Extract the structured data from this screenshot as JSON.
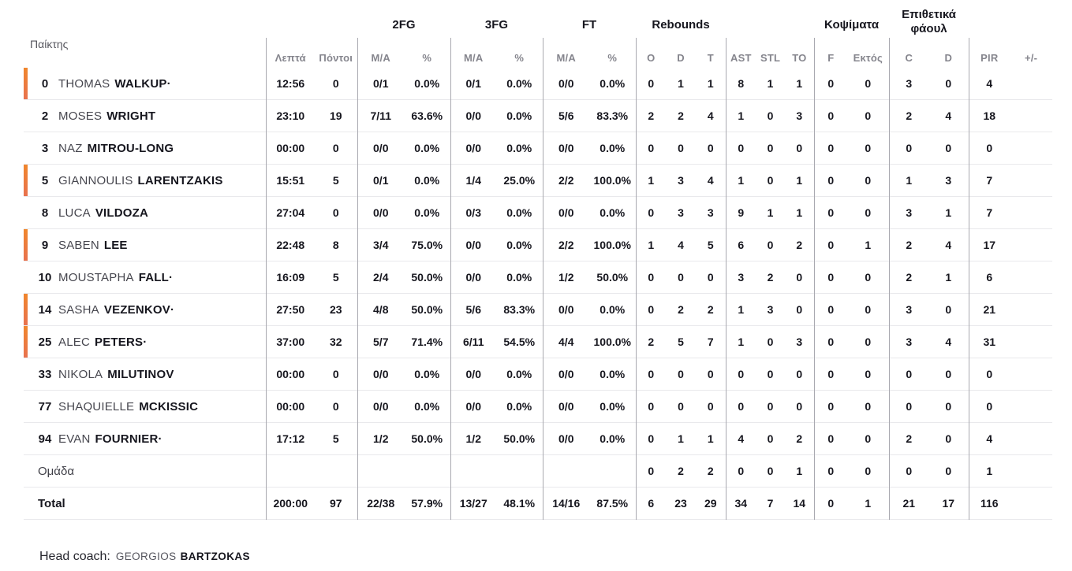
{
  "colors": {
    "starter_bar_top": "#f0862c",
    "starter_bar_bottom": "#e8724f",
    "row_divider": "#e9e9ec",
    "column_divider": "#a9a9b0",
    "text_primary": "#16161e",
    "text_muted": "#85858d"
  },
  "header": {
    "player": "Παίκτης",
    "groups": {
      "fg2": "2FG",
      "fg3": "3FG",
      "ft": "FT",
      "rebounds": "Rebounds",
      "blocks": "Κοψίματα",
      "offensive_fouls": "Επιθετικά φάουλ"
    }
  },
  "sub_headers": [
    "Λεπτά",
    "Πόντοι",
    "M/A",
    "%",
    "M/A",
    "%",
    "M/A",
    "%",
    "O",
    "D",
    "T",
    "AST",
    "STL",
    "TO",
    "F",
    "Εκτός",
    "C",
    "D",
    "PIR",
    "+/-"
  ],
  "rows": [
    {
      "number": "0",
      "first": "THOMAS",
      "last": "WALKUP·",
      "starter": true,
      "cells": [
        "12:56",
        "0",
        "0/1",
        "0.0%",
        "0/1",
        "0.0%",
        "0/0",
        "0.0%",
        "0",
        "1",
        "1",
        "8",
        "1",
        "1",
        "0",
        "0",
        "3",
        "0",
        "4",
        ""
      ]
    },
    {
      "number": "2",
      "first": "MOSES",
      "last": "WRIGHT",
      "starter": false,
      "cells": [
        "23:10",
        "19",
        "7/11",
        "63.6%",
        "0/0",
        "0.0%",
        "5/6",
        "83.3%",
        "2",
        "2",
        "4",
        "1",
        "0",
        "3",
        "0",
        "0",
        "2",
        "4",
        "18",
        ""
      ]
    },
    {
      "number": "3",
      "first": "NAZ",
      "last": "MITROU-LONG",
      "starter": false,
      "cells": [
        "00:00",
        "0",
        "0/0",
        "0.0%",
        "0/0",
        "0.0%",
        "0/0",
        "0.0%",
        "0",
        "0",
        "0",
        "0",
        "0",
        "0",
        "0",
        "0",
        "0",
        "0",
        "0",
        ""
      ]
    },
    {
      "number": "5",
      "first": "GIANNOULIS",
      "last": "LARENTZAKIS",
      "starter": true,
      "cells": [
        "15:51",
        "5",
        "0/1",
        "0.0%",
        "1/4",
        "25.0%",
        "2/2",
        "100.0%",
        "1",
        "3",
        "4",
        "1",
        "0",
        "1",
        "0",
        "0",
        "1",
        "3",
        "7",
        ""
      ]
    },
    {
      "number": "8",
      "first": "LUCA",
      "last": "VILDOZA",
      "starter": false,
      "cells": [
        "27:04",
        "0",
        "0/0",
        "0.0%",
        "0/3",
        "0.0%",
        "0/0",
        "0.0%",
        "0",
        "3",
        "3",
        "9",
        "1",
        "1",
        "0",
        "0",
        "3",
        "1",
        "7",
        ""
      ]
    },
    {
      "number": "9",
      "first": "SABEN",
      "last": "LEE",
      "starter": true,
      "cells": [
        "22:48",
        "8",
        "3/4",
        "75.0%",
        "0/0",
        "0.0%",
        "2/2",
        "100.0%",
        "1",
        "4",
        "5",
        "6",
        "0",
        "2",
        "0",
        "1",
        "2",
        "4",
        "17",
        ""
      ]
    },
    {
      "number": "10",
      "first": "MOUSTAPHA",
      "last": "FALL·",
      "starter": false,
      "cells": [
        "16:09",
        "5",
        "2/4",
        "50.0%",
        "0/0",
        "0.0%",
        "1/2",
        "50.0%",
        "0",
        "0",
        "0",
        "3",
        "2",
        "0",
        "0",
        "0",
        "2",
        "1",
        "6",
        ""
      ]
    },
    {
      "number": "14",
      "first": "SASHA",
      "last": "VEZENKOV·",
      "starter": true,
      "cells": [
        "27:50",
        "23",
        "4/8",
        "50.0%",
        "5/6",
        "83.3%",
        "0/0",
        "0.0%",
        "0",
        "2",
        "2",
        "1",
        "3",
        "0",
        "0",
        "0",
        "3",
        "0",
        "21",
        ""
      ]
    },
    {
      "number": "25",
      "first": "ALEC",
      "last": "PETERS·",
      "starter": true,
      "cells": [
        "37:00",
        "32",
        "5/7",
        "71.4%",
        "6/11",
        "54.5%",
        "4/4",
        "100.0%",
        "2",
        "5",
        "7",
        "1",
        "0",
        "3",
        "0",
        "0",
        "3",
        "4",
        "31",
        ""
      ]
    },
    {
      "number": "33",
      "first": "NIKOLA",
      "last": "MILUTINOV",
      "starter": false,
      "cells": [
        "00:00",
        "0",
        "0/0",
        "0.0%",
        "0/0",
        "0.0%",
        "0/0",
        "0.0%",
        "0",
        "0",
        "0",
        "0",
        "0",
        "0",
        "0",
        "0",
        "0",
        "0",
        "0",
        ""
      ]
    },
    {
      "number": "77",
      "first": "SHAQUIELLE",
      "last": "MCKISSIC",
      "starter": false,
      "cells": [
        "00:00",
        "0",
        "0/0",
        "0.0%",
        "0/0",
        "0.0%",
        "0/0",
        "0.0%",
        "0",
        "0",
        "0",
        "0",
        "0",
        "0",
        "0",
        "0",
        "0",
        "0",
        "0",
        ""
      ]
    },
    {
      "number": "94",
      "first": "EVAN",
      "last": "FOURNIER·",
      "starter": false,
      "cells": [
        "17:12",
        "5",
        "1/2",
        "50.0%",
        "1/2",
        "50.0%",
        "0/0",
        "0.0%",
        "0",
        "1",
        "1",
        "4",
        "0",
        "2",
        "0",
        "0",
        "2",
        "0",
        "4",
        ""
      ]
    }
  ],
  "team_row": {
    "label": "Ομάδα",
    "cells": [
      "",
      "",
      "",
      "",
      "",
      "",
      "",
      "",
      "0",
      "2",
      "2",
      "0",
      "0",
      "1",
      "0",
      "0",
      "0",
      "0",
      "1",
      ""
    ]
  },
  "total_row": {
    "label": "Total",
    "cells": [
      "200:00",
      "97",
      "22/38",
      "57.9%",
      "13/27",
      "48.1%",
      "14/16",
      "87.5%",
      "6",
      "23",
      "29",
      "34",
      "7",
      "14",
      "0",
      "1",
      "21",
      "17",
      "116",
      ""
    ]
  },
  "footer": {
    "label": "Head coach:",
    "coach_first": "GEORGIOS",
    "coach_last": "BARTZOKAS"
  }
}
